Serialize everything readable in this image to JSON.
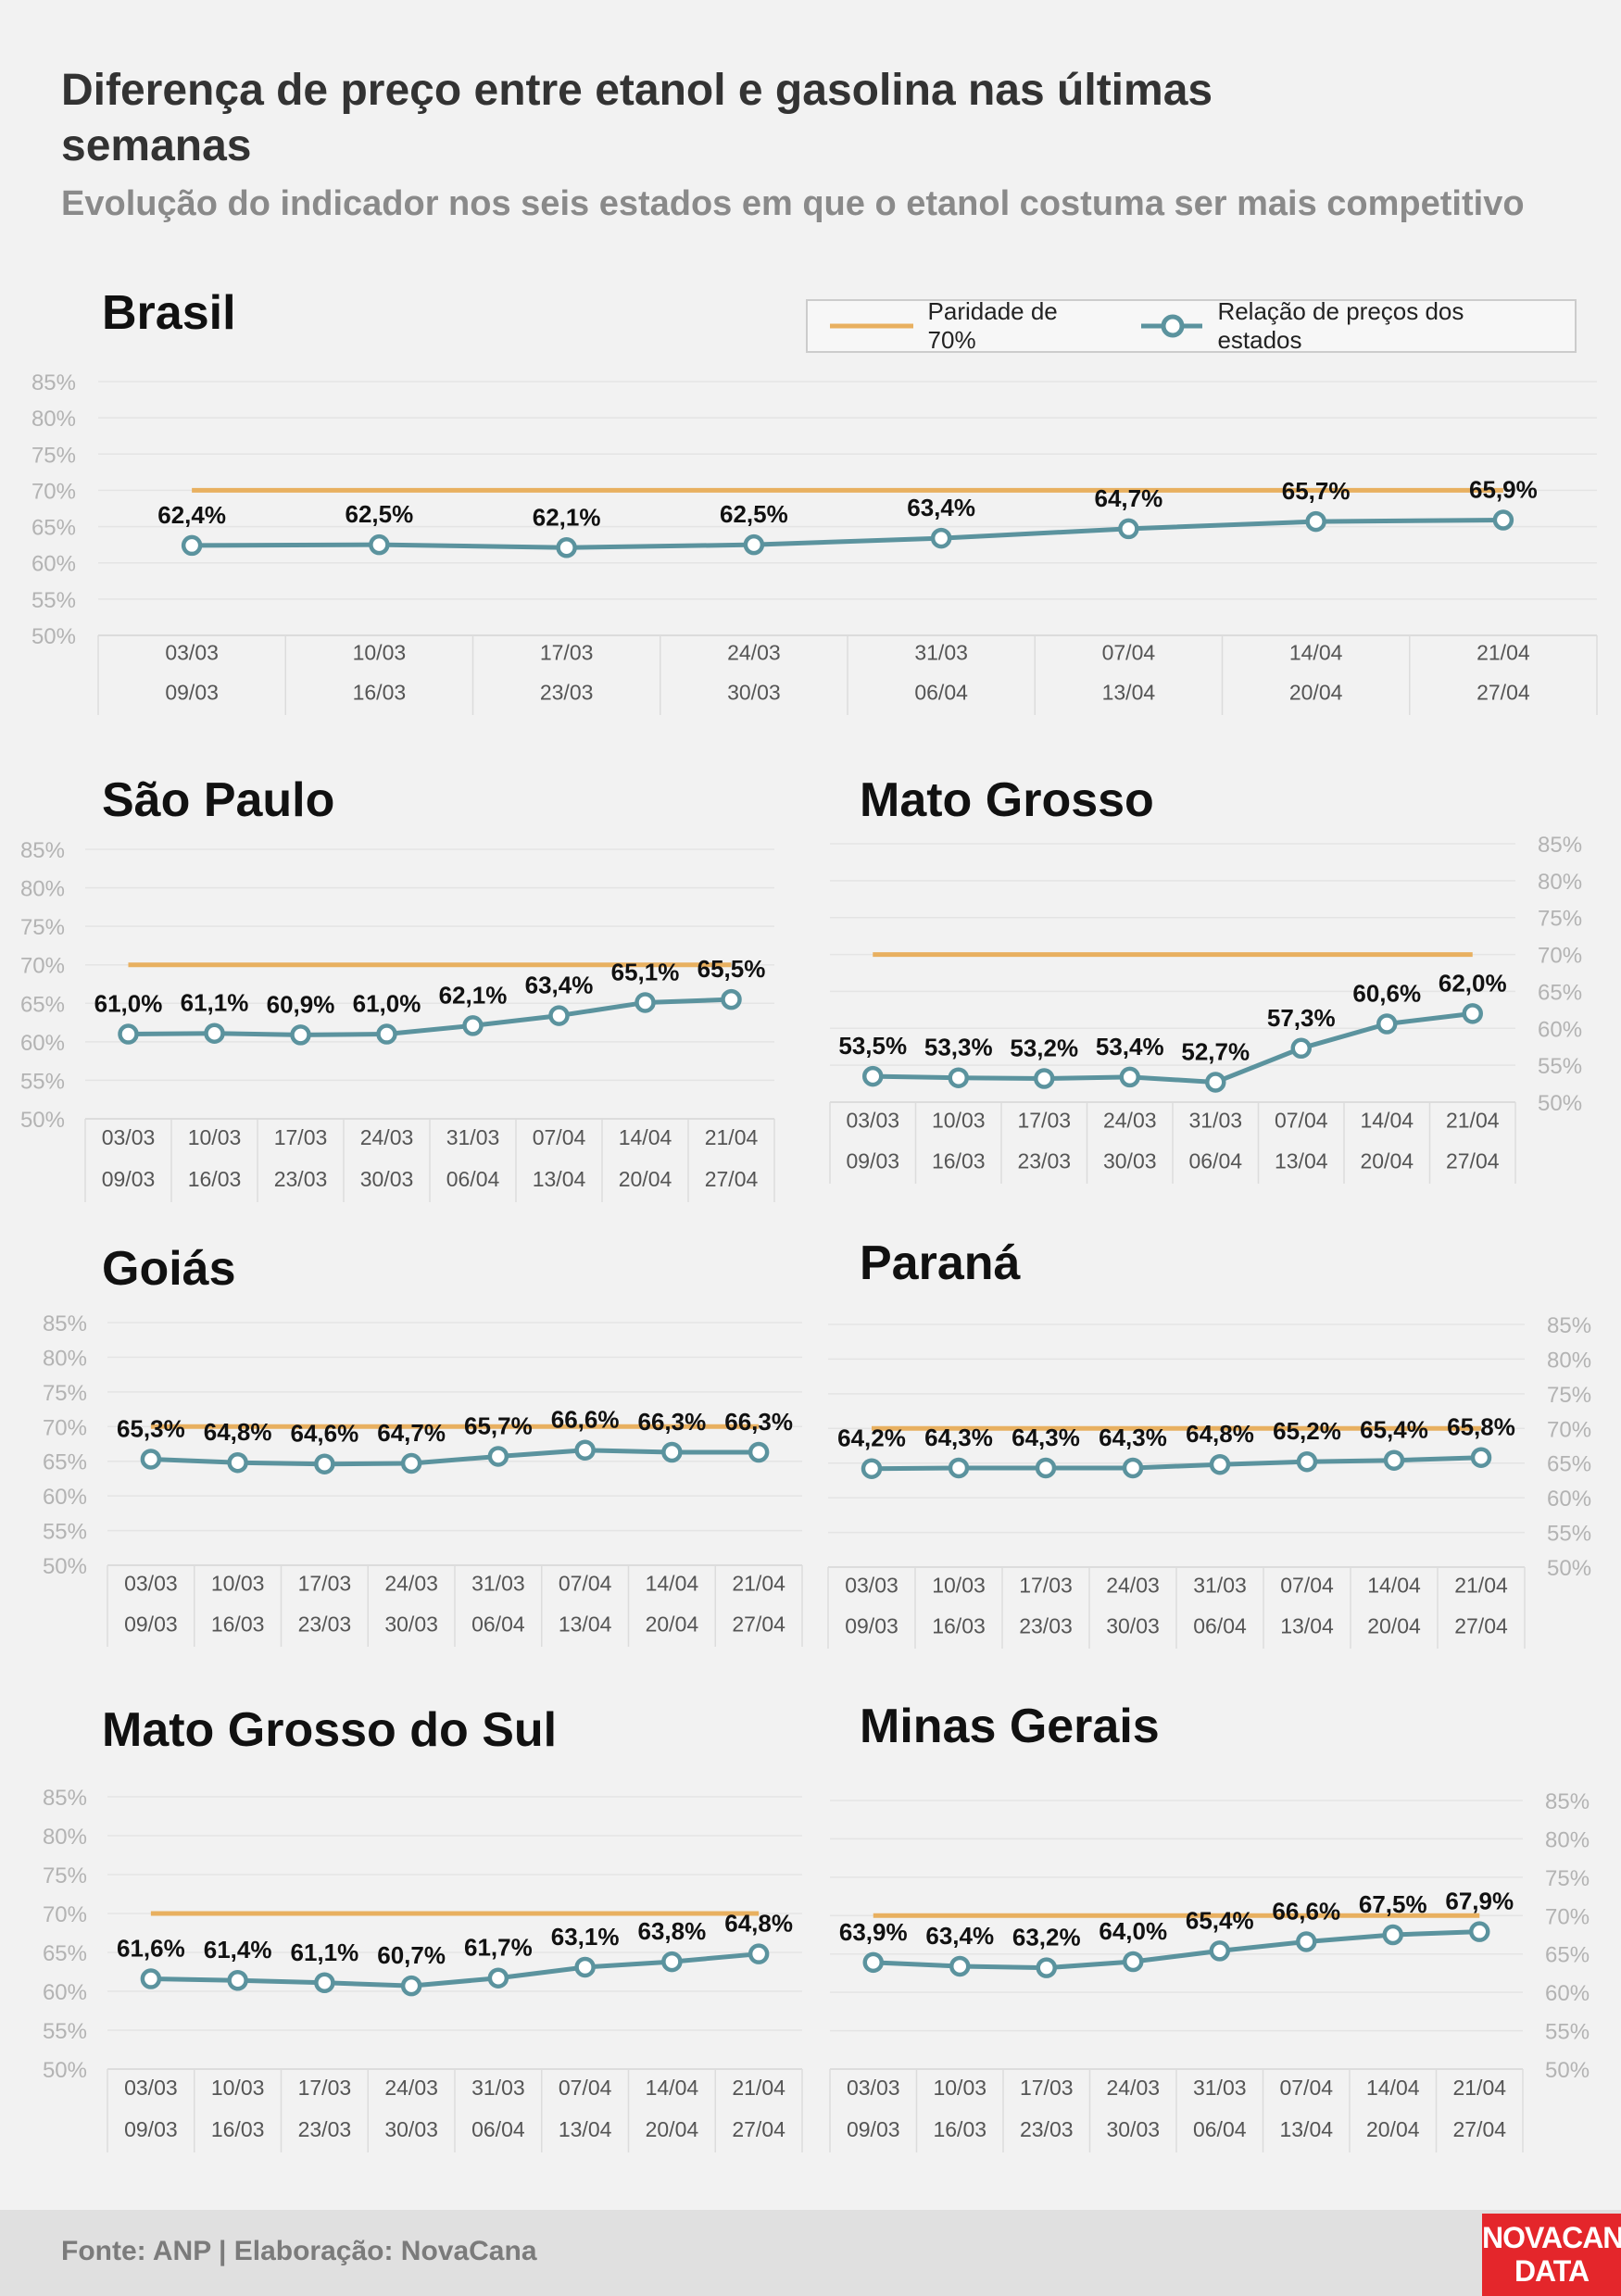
{
  "title": "Diferença de preço entre etanol e gasolina nas últimas semanas",
  "subtitle": "Evolução do indicador nos seis estados em que o etanol costuma ser mais competitivo",
  "legend": {
    "parity_label": "Paridade de 70%",
    "series_label": "Relação de preços dos estados"
  },
  "colors": {
    "parity": "#e8b060",
    "series": "#5b939e",
    "grid": "#e4e4e4",
    "tick": "#b3b3b3"
  },
  "footer": {
    "source": "Fonte: ANP | Elaboração: NovaCana"
  },
  "logo": {
    "line1": "NOVACANA",
    "line2": "DATA"
  },
  "chart_data": [
    {
      "type": "line",
      "id": "brasil",
      "title": "Brasil",
      "categories_start": [
        "03/03",
        "10/03",
        "17/03",
        "24/03",
        "31/03",
        "07/04",
        "14/04",
        "21/04"
      ],
      "categories_end": [
        "09/03",
        "16/03",
        "23/03",
        "30/03",
        "06/04",
        "13/04",
        "20/04",
        "27/04"
      ],
      "values": [
        62.4,
        62.5,
        62.1,
        62.5,
        63.4,
        64.7,
        65.7,
        65.9
      ],
      "labels": [
        "62,4%",
        "62,5%",
        "62,1%",
        "62,5%",
        "63,4%",
        "64,7%",
        "65,7%",
        "65,9%"
      ],
      "parity": 70,
      "ylim": [
        50,
        85
      ],
      "yticks": [
        "85%",
        "80%",
        "75%",
        "70%",
        "65%",
        "60%",
        "55%",
        "50%"
      ],
      "yaxis_side": "left"
    },
    {
      "type": "line",
      "id": "sao-paulo",
      "title": "São Paulo",
      "categories_start": [
        "03/03",
        "10/03",
        "17/03",
        "24/03",
        "31/03",
        "07/04",
        "14/04",
        "21/04"
      ],
      "categories_end": [
        "09/03",
        "16/03",
        "23/03",
        "30/03",
        "06/04",
        "13/04",
        "20/04",
        "27/04"
      ],
      "values": [
        61.0,
        61.1,
        60.9,
        61.0,
        62.1,
        63.4,
        65.1,
        65.5
      ],
      "labels": [
        "61,0%",
        "61,1%",
        "60,9%",
        "61,0%",
        "62,1%",
        "63,4%",
        "65,1%",
        "65,5%"
      ],
      "parity": 70,
      "ylim": [
        50,
        85
      ],
      "yticks": [
        "85%",
        "80%",
        "75%",
        "70%",
        "65%",
        "60%",
        "55%",
        "50%"
      ],
      "yaxis_side": "left"
    },
    {
      "type": "line",
      "id": "mato-grosso",
      "title": "Mato Grosso",
      "categories_start": [
        "03/03",
        "10/03",
        "17/03",
        "24/03",
        "31/03",
        "07/04",
        "14/04",
        "21/04"
      ],
      "categories_end": [
        "09/03",
        "16/03",
        "23/03",
        "30/03",
        "06/04",
        "13/04",
        "20/04",
        "27/04"
      ],
      "values": [
        53.5,
        53.3,
        53.2,
        53.4,
        52.7,
        57.3,
        60.6,
        62.0
      ],
      "labels": [
        "53,5%",
        "53,3%",
        "53,2%",
        "53,4%",
        "52,7%",
        "57,3%",
        "60,6%",
        "62,0%"
      ],
      "parity": 70,
      "ylim": [
        50,
        85
      ],
      "yticks": [
        "85%",
        "80%",
        "75%",
        "70%",
        "65%",
        "60%",
        "55%",
        "50%"
      ],
      "yaxis_side": "right"
    },
    {
      "type": "line",
      "id": "goias",
      "title": "Goiás",
      "categories_start": [
        "03/03",
        "10/03",
        "17/03",
        "24/03",
        "31/03",
        "07/04",
        "14/04",
        "21/04"
      ],
      "categories_end": [
        "09/03",
        "16/03",
        "23/03",
        "30/03",
        "06/04",
        "13/04",
        "20/04",
        "27/04"
      ],
      "values": [
        65.3,
        64.8,
        64.6,
        64.7,
        65.7,
        66.6,
        66.3,
        66.3
      ],
      "labels": [
        "65,3%",
        "64,8%",
        "64,6%",
        "64,7%",
        "65,7%",
        "66,6%",
        "66,3%",
        "66,3%"
      ],
      "parity": 70,
      "ylim": [
        50,
        85
      ],
      "yticks": [
        "85%",
        "80%",
        "75%",
        "70%",
        "65%",
        "60%",
        "55%",
        "50%"
      ],
      "yaxis_side": "left"
    },
    {
      "type": "line",
      "id": "parana",
      "title": "Paraná",
      "categories_start": [
        "03/03",
        "10/03",
        "17/03",
        "24/03",
        "31/03",
        "07/04",
        "14/04",
        "21/04"
      ],
      "categories_end": [
        "09/03",
        "16/03",
        "23/03",
        "30/03",
        "06/04",
        "13/04",
        "20/04",
        "27/04"
      ],
      "values": [
        64.2,
        64.3,
        64.3,
        64.3,
        64.8,
        65.2,
        65.4,
        65.8
      ],
      "labels": [
        "64,2%",
        "64,3%",
        "64,3%",
        "64,3%",
        "64,8%",
        "65,2%",
        "65,4%",
        "65,8%"
      ],
      "parity": 70,
      "ylim": [
        50,
        85
      ],
      "yticks": [
        "85%",
        "80%",
        "75%",
        "70%",
        "65%",
        "60%",
        "55%",
        "50%"
      ],
      "yaxis_side": "right"
    },
    {
      "type": "line",
      "id": "mato-grosso-do-sul",
      "title": "Mato Grosso do Sul",
      "categories_start": [
        "03/03",
        "10/03",
        "17/03",
        "24/03",
        "31/03",
        "07/04",
        "14/04",
        "21/04"
      ],
      "categories_end": [
        "09/03",
        "16/03",
        "23/03",
        "30/03",
        "06/04",
        "13/04",
        "20/04",
        "27/04"
      ],
      "values": [
        61.6,
        61.4,
        61.1,
        60.7,
        61.7,
        63.1,
        63.8,
        64.8
      ],
      "labels": [
        "61,6%",
        "61,4%",
        "61,1%",
        "60,7%",
        "61,7%",
        "63,1%",
        "63,8%",
        "64,8%"
      ],
      "parity": 70,
      "ylim": [
        50,
        85
      ],
      "yticks": [
        "85%",
        "80%",
        "75%",
        "70%",
        "65%",
        "60%",
        "55%",
        "50%"
      ],
      "yaxis_side": "left"
    },
    {
      "type": "line",
      "id": "minas-gerais",
      "title": "Minas Gerais",
      "categories_start": [
        "03/03",
        "10/03",
        "17/03",
        "24/03",
        "31/03",
        "07/04",
        "14/04",
        "21/04"
      ],
      "categories_end": [
        "09/03",
        "16/03",
        "23/03",
        "30/03",
        "06/04",
        "13/04",
        "20/04",
        "27/04"
      ],
      "values": [
        63.9,
        63.4,
        63.2,
        64.0,
        65.4,
        66.6,
        67.5,
        67.9
      ],
      "labels": [
        "63,9%",
        "63,4%",
        "63,2%",
        "64,0%",
        "65,4%",
        "66,6%",
        "67,5%",
        "67,9%"
      ],
      "parity": 70,
      "ylim": [
        50,
        85
      ],
      "yticks": [
        "85%",
        "80%",
        "75%",
        "70%",
        "65%",
        "60%",
        "55%",
        "50%"
      ],
      "yaxis_side": "right"
    }
  ]
}
